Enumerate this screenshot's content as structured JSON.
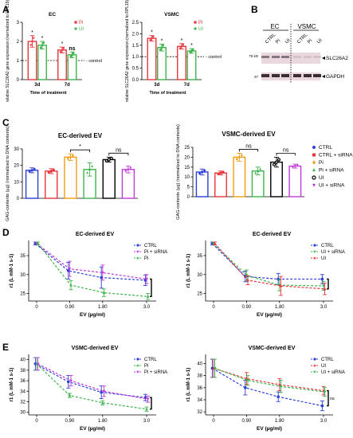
{
  "panels": [
    {
      "id": "A1",
      "type": "bar",
      "letter": "A",
      "title": "EC",
      "ylabel": "relative SLC26A2 gene expression (normalized to RPL19)",
      "xlabel": "Time of treatment",
      "categories": [
        "3d",
        "7d"
      ],
      "ylim": [
        0,
        3
      ],
      "yticks": [
        0,
        1,
        2,
        3
      ],
      "reference_line": {
        "value": 1,
        "label": "control"
      },
      "series": [
        {
          "name": "Pi",
          "color": "#e8353b",
          "values": [
            2.0,
            1.55
          ],
          "errors": [
            0.3,
            0.15
          ],
          "sig": [
            "*",
            "*"
          ]
        },
        {
          "name": "UI",
          "color": "#3cb44b",
          "values": [
            1.8,
            1.3
          ],
          "errors": [
            0.2,
            0.15
          ],
          "sig": [
            "*",
            "ns"
          ]
        }
      ]
    },
    {
      "id": "A2",
      "type": "bar",
      "letter": "",
      "title": "VSMC",
      "ylabel": "relative SLC26A2 gene expression (normalized to RPL19)",
      "xlabel": "Time of treatment",
      "categories": [
        "3d",
        "7d"
      ],
      "ylim": [
        0,
        2.5
      ],
      "yticks": [
        0.0,
        0.5,
        1.0,
        1.5,
        2.0,
        2.5
      ],
      "reference_line": {
        "value": 1,
        "label": "control"
      },
      "series": [
        {
          "name": "Pi",
          "color": "#e8353b",
          "values": [
            1.8,
            1.45
          ],
          "errors": [
            0.12,
            0.12
          ],
          "sig": [
            "*",
            "*"
          ]
        },
        {
          "name": "UI",
          "color": "#3cb44b",
          "values": [
            1.4,
            1.25
          ],
          "errors": [
            0.15,
            0.1
          ],
          "sig": [
            "*",
            "*"
          ]
        }
      ]
    },
    {
      "id": "C1",
      "type": "bar",
      "letter": "C",
      "title": "EC-derived EV",
      "ylabel": "GAG-contents (µg) (normalized to DNA contents)",
      "categories": [
        "CTRL",
        "CTRL + siRNA",
        "Pi",
        "Pi + siRNA",
        "UI",
        "UI + siRNA"
      ],
      "ylim": [
        0,
        30
      ],
      "yticks": [
        0,
        10,
        20,
        30
      ],
      "values": [
        17,
        16.5,
        25,
        17.5,
        23.5,
        17.5
      ],
      "errors": [
        1.5,
        1.5,
        2,
        4,
        1.5,
        2
      ],
      "colors": [
        "#2b3fd6",
        "#e8353b",
        "#f39c12",
        "#3cb44b",
        "#000000",
        "#c03ad6"
      ],
      "brackets": [
        {
          "from": 2,
          "to": 3,
          "label": "*"
        },
        {
          "from": 4,
          "to": 5,
          "label": "ns"
        }
      ]
    },
    {
      "id": "C2",
      "type": "bar",
      "letter": "",
      "title": "VSMC-derived EV",
      "ylabel": "GAG-contents (µg) (normalized to DNA contents)",
      "categories": [
        "CTRL",
        "CTRL + siRNA",
        "Pi",
        "Pi + siRNA",
        "UI",
        "UI + siRNA"
      ],
      "ylim": [
        0,
        25
      ],
      "yticks": [
        0,
        5,
        10,
        15,
        20,
        25
      ],
      "values": [
        12.5,
        12,
        20,
        13,
        17.5,
        15.5
      ],
      "errors": [
        1.5,
        1,
        2,
        2,
        2.5,
        1
      ],
      "colors": [
        "#2b3fd6",
        "#e8353b",
        "#f39c12",
        "#3cb44b",
        "#000000",
        "#c03ad6"
      ],
      "brackets": [
        {
          "from": 2,
          "to": 3,
          "label": "ns"
        },
        {
          "from": 4,
          "to": 5,
          "label": "ns"
        }
      ],
      "legend": [
        {
          "name": "CTRL",
          "color": "#2b3fd6",
          "marker": "circle"
        },
        {
          "name": "CTRL + siRNA",
          "color": "#e8353b",
          "marker": "square"
        },
        {
          "name": "Pi",
          "color": "#f39c12",
          "marker": "diamond"
        },
        {
          "name": "Pi + siRNA",
          "color": "#3cb44b",
          "marker": "triangle"
        },
        {
          "name": "UI",
          "color": "#000000",
          "marker": "open-circle"
        },
        {
          "name": "UI + siRNA",
          "color": "#c03ad6",
          "marker": "triangle-down"
        }
      ]
    },
    {
      "id": "D1",
      "type": "line",
      "letter": "D",
      "title": "EC-derived EV",
      "xlabel": "EV (µg/ml)",
      "ylabel": "r1 (L mM-1 s-1)",
      "x": [
        0,
        0.9,
        1.8,
        3.0
      ],
      "xticks": [
        "0",
        "0.90",
        "1.80",
        "3.0"
      ],
      "ylim": [
        23,
        39
      ],
      "yticks": [
        25,
        30,
        35
      ],
      "series": [
        {
          "name": "CTRL",
          "color": "#2b3fd6",
          "marker": "circle",
          "values": [
            38.2,
            31.0,
            29.2,
            28.5
          ],
          "errors": [
            0.4,
            2.2,
            2.8,
            1.4
          ]
        },
        {
          "name": "Pi + siRNA",
          "color": "#c03ad6",
          "marker": "triangle-down",
          "values": [
            38.2,
            31.5,
            30.5,
            28.8
          ],
          "errors": [
            0.4,
            2.0,
            2.0,
            1.2
          ]
        },
        {
          "name": "Pi",
          "color": "#3cb44b",
          "marker": "triangle",
          "values": [
            38.2,
            27.2,
            25.2,
            24.2
          ],
          "errors": [
            0.4,
            1.2,
            1.0,
            0.8
          ]
        }
      ]
    },
    {
      "id": "D2",
      "type": "line",
      "letter": "",
      "title": "EC-derived EV",
      "xlabel": "EV (µg/ml)",
      "ylabel": "r1 (L mM-1 s-1)",
      "x": [
        0,
        0.9,
        1.8,
        3.0
      ],
      "xticks": [
        "0",
        "0.90",
        "1.80",
        "3.0"
      ],
      "ylim": [
        23,
        39
      ],
      "yticks": [
        25,
        30,
        35
      ],
      "series": [
        {
          "name": "CTRL",
          "color": "#2b3fd6",
          "marker": "circle",
          "values": [
            38.2,
            29.5,
            28.8,
            28.8
          ],
          "errors": [
            0.4,
            1.4,
            1.5,
            1.2
          ]
        },
        {
          "name": "UI + siRNA",
          "color": "#3cb44b",
          "marker": "triangle-down",
          "values": [
            38.2,
            29.8,
            27.2,
            27.0
          ],
          "errors": [
            0.4,
            1.4,
            1.5,
            1.2
          ]
        },
        {
          "name": "UI",
          "color": "#e8353b",
          "marker": "triangle",
          "values": [
            38.2,
            28.5,
            27.0,
            26.2
          ],
          "errors": [
            0.4,
            1.2,
            2.5,
            1.5
          ]
        }
      ]
    },
    {
      "id": "E1",
      "type": "line",
      "letter": "E",
      "title": "VSMC-derived EV",
      "xlabel": "EV (µg/ml)",
      "ylabel": "r1 (L mM-1 s-1)",
      "x": [
        0,
        0.9,
        1.8,
        3.0
      ],
      "xticks": [
        "0",
        "0.90",
        "1.80",
        "3.0"
      ],
      "ylim": [
        29.5,
        41
      ],
      "yticks": [
        30,
        32,
        34,
        36,
        38,
        40
      ],
      "series": [
        {
          "name": "CTRL",
          "color": "#2b3fd6",
          "marker": "circle",
          "values": [
            39.2,
            35.8,
            33.8,
            32.8
          ],
          "errors": [
            1.2,
            1.2,
            1.2,
            0.6
          ]
        },
        {
          "name": "Pi",
          "color": "#3cb44b",
          "marker": "triangle",
          "values": [
            39.2,
            33.2,
            31.8,
            30.6
          ],
          "errors": [
            1.2,
            0.4,
            0.4,
            0.4
          ]
        },
        {
          "name": "Pi + siRNA",
          "color": "#c03ad6",
          "marker": "triangle-down",
          "values": [
            39.2,
            36.0,
            34.0,
            32.5
          ],
          "errors": [
            1.2,
            1.0,
            1.0,
            0.6
          ]
        }
      ]
    },
    {
      "id": "E2",
      "type": "line",
      "letter": "",
      "title": "VSMC-derived EV",
      "xlabel": "EV (µg/ml)",
      "ylabel": "r1 (L mM-1 s-1)",
      "x": [
        0,
        0.9,
        1.8,
        3.0
      ],
      "xticks": [
        "0",
        "0.90",
        "1.80",
        "3.0"
      ],
      "ylim": [
        31.5,
        41.5
      ],
      "yticks": [
        32,
        34,
        36,
        38,
        40
      ],
      "series": [
        {
          "name": "CTRL",
          "color": "#2b3fd6",
          "marker": "circle",
          "values": [
            39.2,
            36.0,
            34.5,
            33.0
          ],
          "errors": [
            1.5,
            1.2,
            0.8,
            0.8
          ]
        },
        {
          "name": "UI",
          "color": "#e8353b",
          "marker": "triangle",
          "values": [
            39.2,
            37.5,
            36.5,
            35.5
          ],
          "errors": [
            1.5,
            1.0,
            1.0,
            0.7
          ]
        },
        {
          "name": "UI + siRNA",
          "color": "#3cb44b",
          "marker": "triangle-down",
          "values": [
            39.2,
            37.2,
            36.2,
            35.3
          ],
          "errors": [
            1.5,
            0.8,
            1.0,
            0.7
          ]
        }
      ],
      "brackets": [
        {
          "label": "ns"
        }
      ]
    }
  ],
  "blot": {
    "letter": "B",
    "groups": [
      "EC",
      "VSMC"
    ],
    "lanes": [
      "CTRL",
      "Pi",
      "UI",
      "CTRL",
      "Pi",
      "UI"
    ],
    "markers": [
      "75 kD",
      "37"
    ],
    "proteins": [
      "SLC26A2",
      "GAPDH"
    ]
  }
}
